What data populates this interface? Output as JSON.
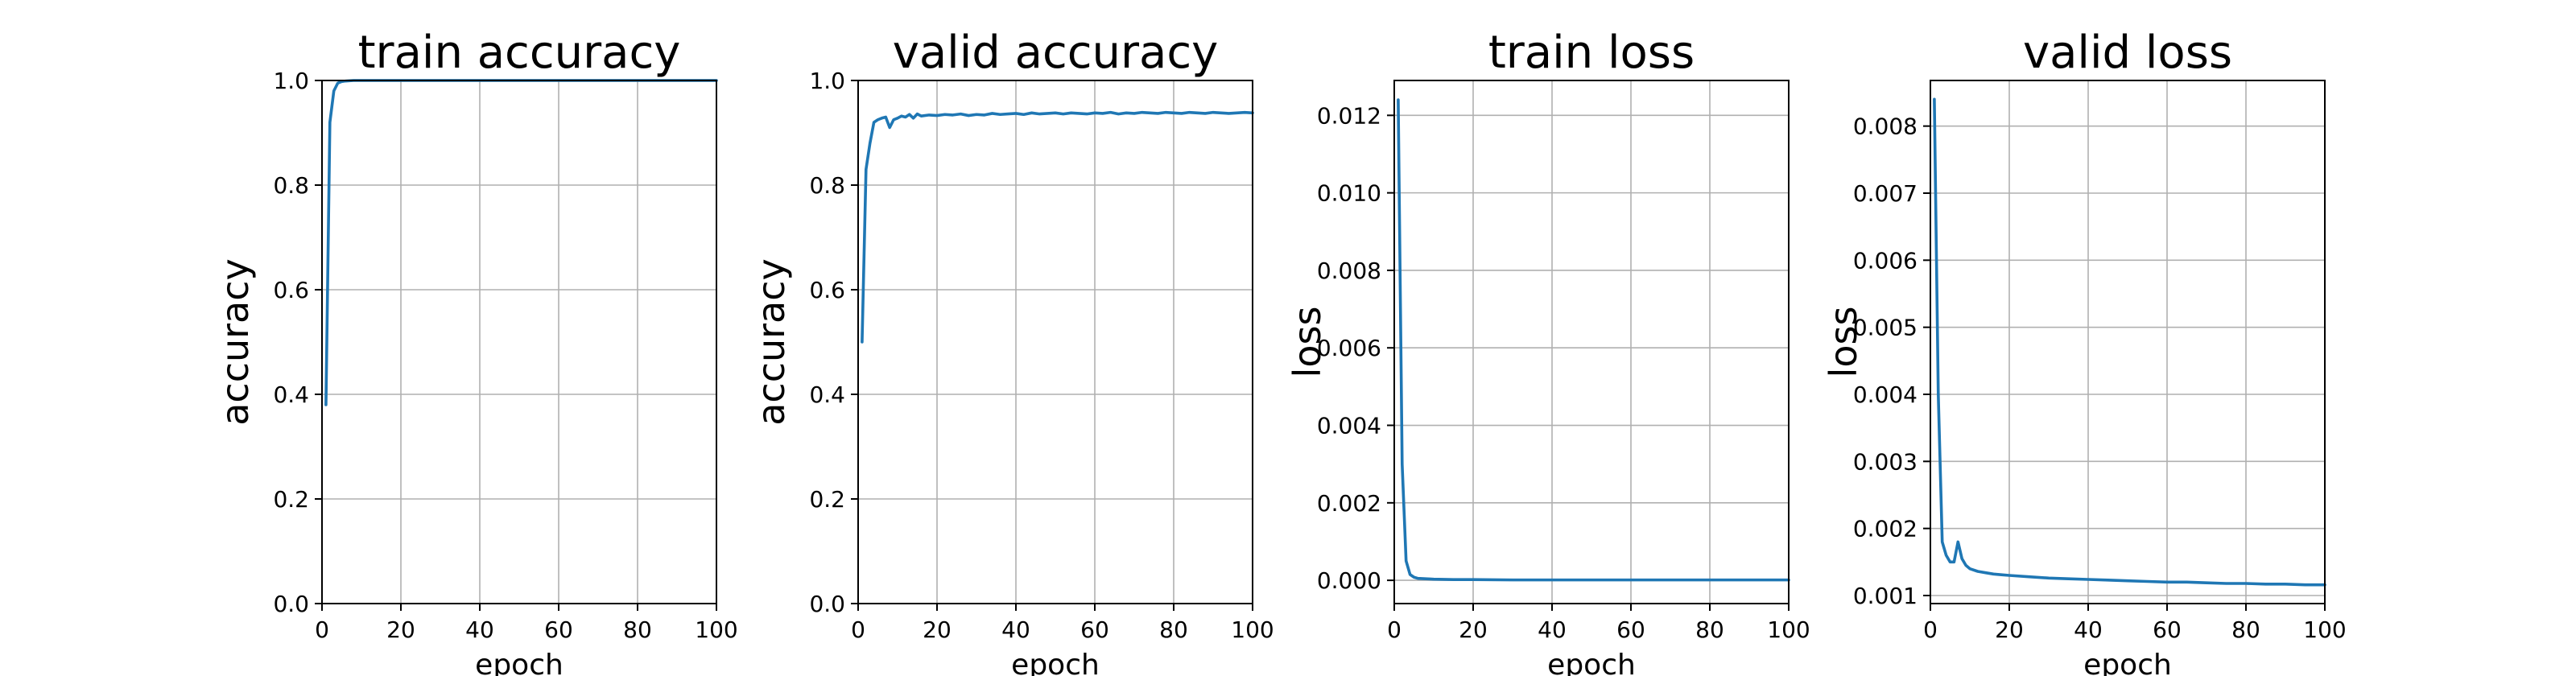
{
  "colors": {
    "line": "#1f77b4",
    "grid": "#b0b0b0",
    "axes": "#000000",
    "background": "#ffffff"
  },
  "chart_data": [
    {
      "type": "line",
      "title": "train accuracy",
      "xlabel": "epoch",
      "ylabel": "accuracy",
      "xlim": [
        0,
        100
      ],
      "ylim": [
        0.0,
        1.0
      ],
      "grid": true,
      "xticks": [
        0,
        20,
        40,
        60,
        80,
        100
      ],
      "xtick_labels": [
        "0",
        "20",
        "40",
        "60",
        "80",
        "100"
      ],
      "yticks": [
        0.0,
        0.2,
        0.4,
        0.6,
        0.8,
        1.0
      ],
      "ytick_labels": [
        "0.0",
        "0.2",
        "0.4",
        "0.6",
        "0.8",
        "1.0"
      ],
      "series": [
        {
          "x": [
            1,
            2,
            3,
            4,
            5,
            6,
            8,
            10,
            15,
            20,
            30,
            40,
            50,
            60,
            70,
            80,
            90,
            100
          ],
          "y": [
            0.38,
            0.92,
            0.98,
            0.995,
            0.998,
            0.999,
            1.0,
            1.0,
            1.0,
            1.0,
            1.0,
            1.0,
            1.0,
            1.0,
            1.0,
            1.0,
            1.0,
            1.0
          ]
        }
      ]
    },
    {
      "type": "line",
      "title": "valid accuracy",
      "xlabel": "epoch",
      "ylabel": "accuracy",
      "xlim": [
        0,
        100
      ],
      "ylim": [
        0.0,
        1.0
      ],
      "grid": true,
      "xticks": [
        0,
        20,
        40,
        60,
        80,
        100
      ],
      "xtick_labels": [
        "0",
        "20",
        "40",
        "60",
        "80",
        "100"
      ],
      "yticks": [
        0.0,
        0.2,
        0.4,
        0.6,
        0.8,
        1.0
      ],
      "ytick_labels": [
        "0.0",
        "0.2",
        "0.4",
        "0.6",
        "0.8",
        "1.0"
      ],
      "series": [
        {
          "x": [
            1,
            2,
            3,
            4,
            5,
            6,
            7,
            8,
            9,
            10,
            11,
            12,
            13,
            14,
            15,
            16,
            18,
            20,
            22,
            24,
            26,
            28,
            30,
            32,
            34,
            36,
            38,
            40,
            42,
            44,
            46,
            48,
            50,
            52,
            54,
            56,
            58,
            60,
            62,
            64,
            66,
            68,
            70,
            72,
            74,
            76,
            78,
            80,
            82,
            84,
            86,
            88,
            90,
            92,
            94,
            96,
            98,
            100
          ],
          "y": [
            0.5,
            0.83,
            0.88,
            0.92,
            0.925,
            0.928,
            0.93,
            0.91,
            0.925,
            0.928,
            0.932,
            0.93,
            0.935,
            0.928,
            0.936,
            0.932,
            0.934,
            0.933,
            0.935,
            0.934,
            0.936,
            0.933,
            0.935,
            0.934,
            0.937,
            0.935,
            0.936,
            0.937,
            0.935,
            0.938,
            0.936,
            0.937,
            0.938,
            0.936,
            0.938,
            0.937,
            0.936,
            0.938,
            0.937,
            0.939,
            0.936,
            0.938,
            0.937,
            0.939,
            0.938,
            0.937,
            0.939,
            0.938,
            0.937,
            0.939,
            0.938,
            0.937,
            0.939,
            0.938,
            0.937,
            0.938,
            0.939,
            0.938
          ]
        }
      ]
    },
    {
      "type": "line",
      "title": "train loss",
      "xlabel": "epoch",
      "ylabel": "loss",
      "xlim": [
        0,
        100
      ],
      "ylim": [
        -0.0006,
        0.0129
      ],
      "grid": true,
      "xticks": [
        0,
        20,
        40,
        60,
        80,
        100
      ],
      "xtick_labels": [
        "0",
        "20",
        "40",
        "60",
        "80",
        "100"
      ],
      "yticks": [
        0.0,
        0.002,
        0.004,
        0.006,
        0.008,
        0.01,
        0.012
      ],
      "ytick_labels": [
        "0.000",
        "0.002",
        "0.004",
        "0.006",
        "0.008",
        "0.010",
        "0.012"
      ],
      "series": [
        {
          "x": [
            1,
            2,
            3,
            4,
            5,
            6,
            8,
            10,
            15,
            20,
            30,
            40,
            50,
            60,
            70,
            80,
            90,
            100
          ],
          "y": [
            0.0124,
            0.003,
            0.0005,
            0.00015,
            8e-05,
            5e-05,
            4e-05,
            3e-05,
            2e-05,
            2e-05,
            1e-05,
            1e-05,
            1e-05,
            1e-05,
            1e-05,
            1e-05,
            1e-05,
            1e-05
          ]
        }
      ]
    },
    {
      "type": "line",
      "title": "valid loss",
      "xlabel": "epoch",
      "ylabel": "loss",
      "xlim": [
        0,
        100
      ],
      "ylim": [
        0.00088,
        0.00868
      ],
      "grid": true,
      "xticks": [
        0,
        20,
        40,
        60,
        80,
        100
      ],
      "xtick_labels": [
        "0",
        "20",
        "40",
        "60",
        "80",
        "100"
      ],
      "yticks": [
        0.001,
        0.002,
        0.003,
        0.004,
        0.005,
        0.006,
        0.007,
        0.008
      ],
      "ytick_labels": [
        "0.001",
        "0.002",
        "0.003",
        "0.004",
        "0.005",
        "0.006",
        "0.007",
        "0.008"
      ],
      "series": [
        {
          "x": [
            1,
            2,
            3,
            4,
            5,
            6,
            7,
            8,
            9,
            10,
            12,
            14,
            16,
            18,
            20,
            25,
            30,
            35,
            40,
            45,
            50,
            55,
            60,
            65,
            70,
            75,
            80,
            85,
            90,
            95,
            100
          ],
          "y": [
            0.0084,
            0.004,
            0.0018,
            0.0016,
            0.0015,
            0.0015,
            0.0018,
            0.00155,
            0.00145,
            0.0014,
            0.00136,
            0.00134,
            0.00132,
            0.00131,
            0.0013,
            0.00128,
            0.00126,
            0.00125,
            0.00124,
            0.00123,
            0.00122,
            0.00121,
            0.0012,
            0.0012,
            0.00119,
            0.00118,
            0.00118,
            0.00117,
            0.00117,
            0.00116,
            0.00116
          ]
        }
      ]
    }
  ]
}
